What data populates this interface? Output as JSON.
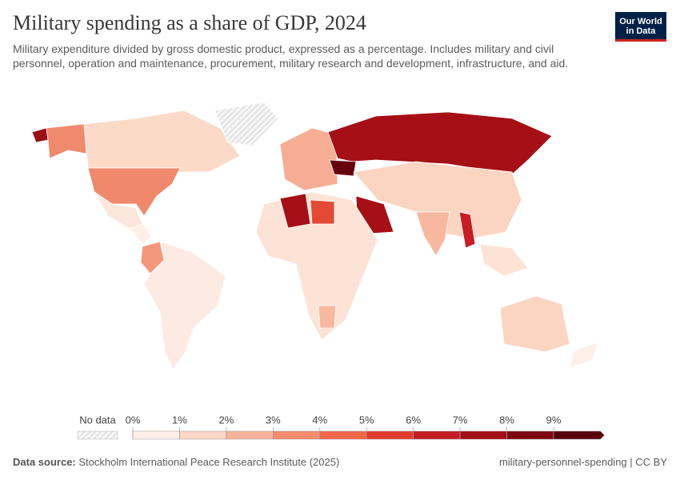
{
  "header": {
    "title": "Military spending as a share of GDP, 2024",
    "subtitle": "Military expenditure divided by gross domestic product, expressed as a percentage. Includes military and civil personnel, operation and maintenance, procurement, military research and development, infrastructure, and aid.",
    "logo": [
      "Our World",
      "in Data"
    ]
  },
  "legend": {
    "no_data": "No data",
    "ticks": [
      {
        "value": 0,
        "label": "0%"
      },
      {
        "value": 1,
        "label": "1%"
      },
      {
        "value": 2,
        "label": "2%"
      },
      {
        "value": 3,
        "label": "3%"
      },
      {
        "value": 4,
        "label": "4%"
      },
      {
        "value": 5,
        "label": "5%"
      },
      {
        "value": 6,
        "label": "6%"
      },
      {
        "value": 7,
        "label": "7%"
      },
      {
        "value": 8,
        "label": "8%"
      },
      {
        "value": 9,
        "label": "9%"
      }
    ],
    "colors": [
      "#fef0e9",
      "#fcd7c5",
      "#f9b39b",
      "#f48c6e",
      "#ef6649",
      "#e03b2f",
      "#c31d23",
      "#a40f16",
      "#7e0710",
      "#5a000c"
    ]
  },
  "footer": {
    "source_label": "Data source:",
    "source": "Stockholm International Peace Research Institute (2025)",
    "right": "military-personnel-spending | CC BY"
  }
}
